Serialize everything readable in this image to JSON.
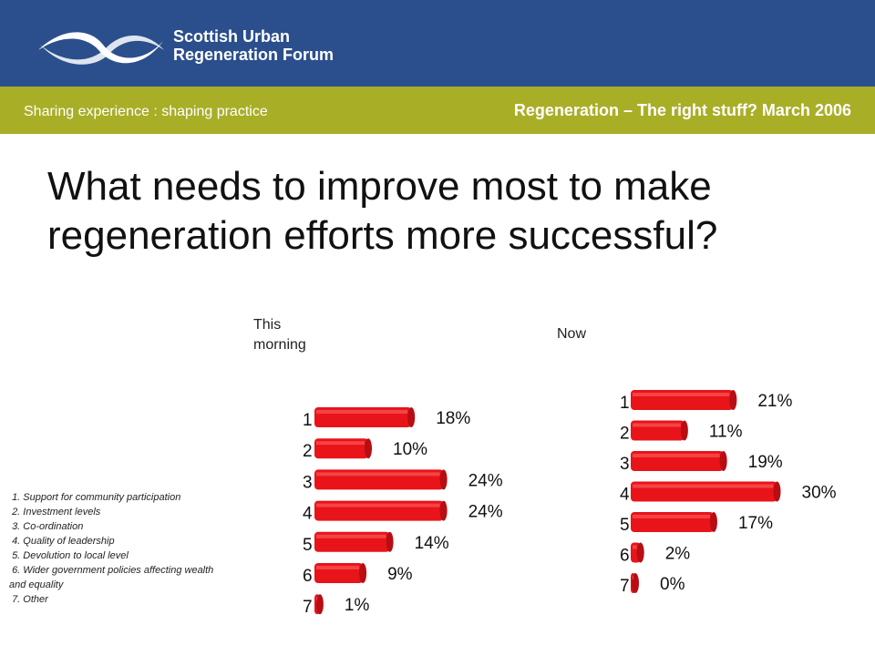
{
  "header": {
    "org_line1": "Scottish Urban",
    "org_line2": "Regeneration Forum",
    "tagline": "Sharing experience : shaping practice",
    "event": "Regeneration – The right stuff? March 2006"
  },
  "title_line1": "What needs to improve most to make",
  "title_line2": "regeneration efforts more successful?",
  "colors": {
    "header": "#2b4f8c",
    "band": "#a9ae27",
    "bar": "#e8141a"
  },
  "legend": [
    " 1. Support for community participation",
    " 2. Investment levels",
    " 3. Co-ordination",
    " 4. Quality of leadership",
    " 5. Devolution to local level",
    " 6. Wider government policies affecting wealth and equality",
    " 7. Other"
  ],
  "chart_data": [
    {
      "type": "bar",
      "title": "This morning",
      "categories": [
        "1",
        "2",
        "3",
        "4",
        "5",
        "6",
        "7"
      ],
      "values": [
        18,
        10,
        24,
        24,
        14,
        9,
        1
      ],
      "value_labels": [
        "18%",
        "10%",
        "24%",
        "24%",
        "14%",
        "9%",
        "1%"
      ]
    },
    {
      "type": "bar",
      "title": "Now",
      "categories": [
        "1",
        "2",
        "3",
        "4",
        "5",
        "6",
        "7"
      ],
      "values": [
        21,
        11,
        19,
        30,
        17,
        2,
        0
      ],
      "value_labels": [
        "21%",
        "11%",
        "19%",
        "30%",
        "17%",
        "2%",
        "0%"
      ]
    }
  ]
}
